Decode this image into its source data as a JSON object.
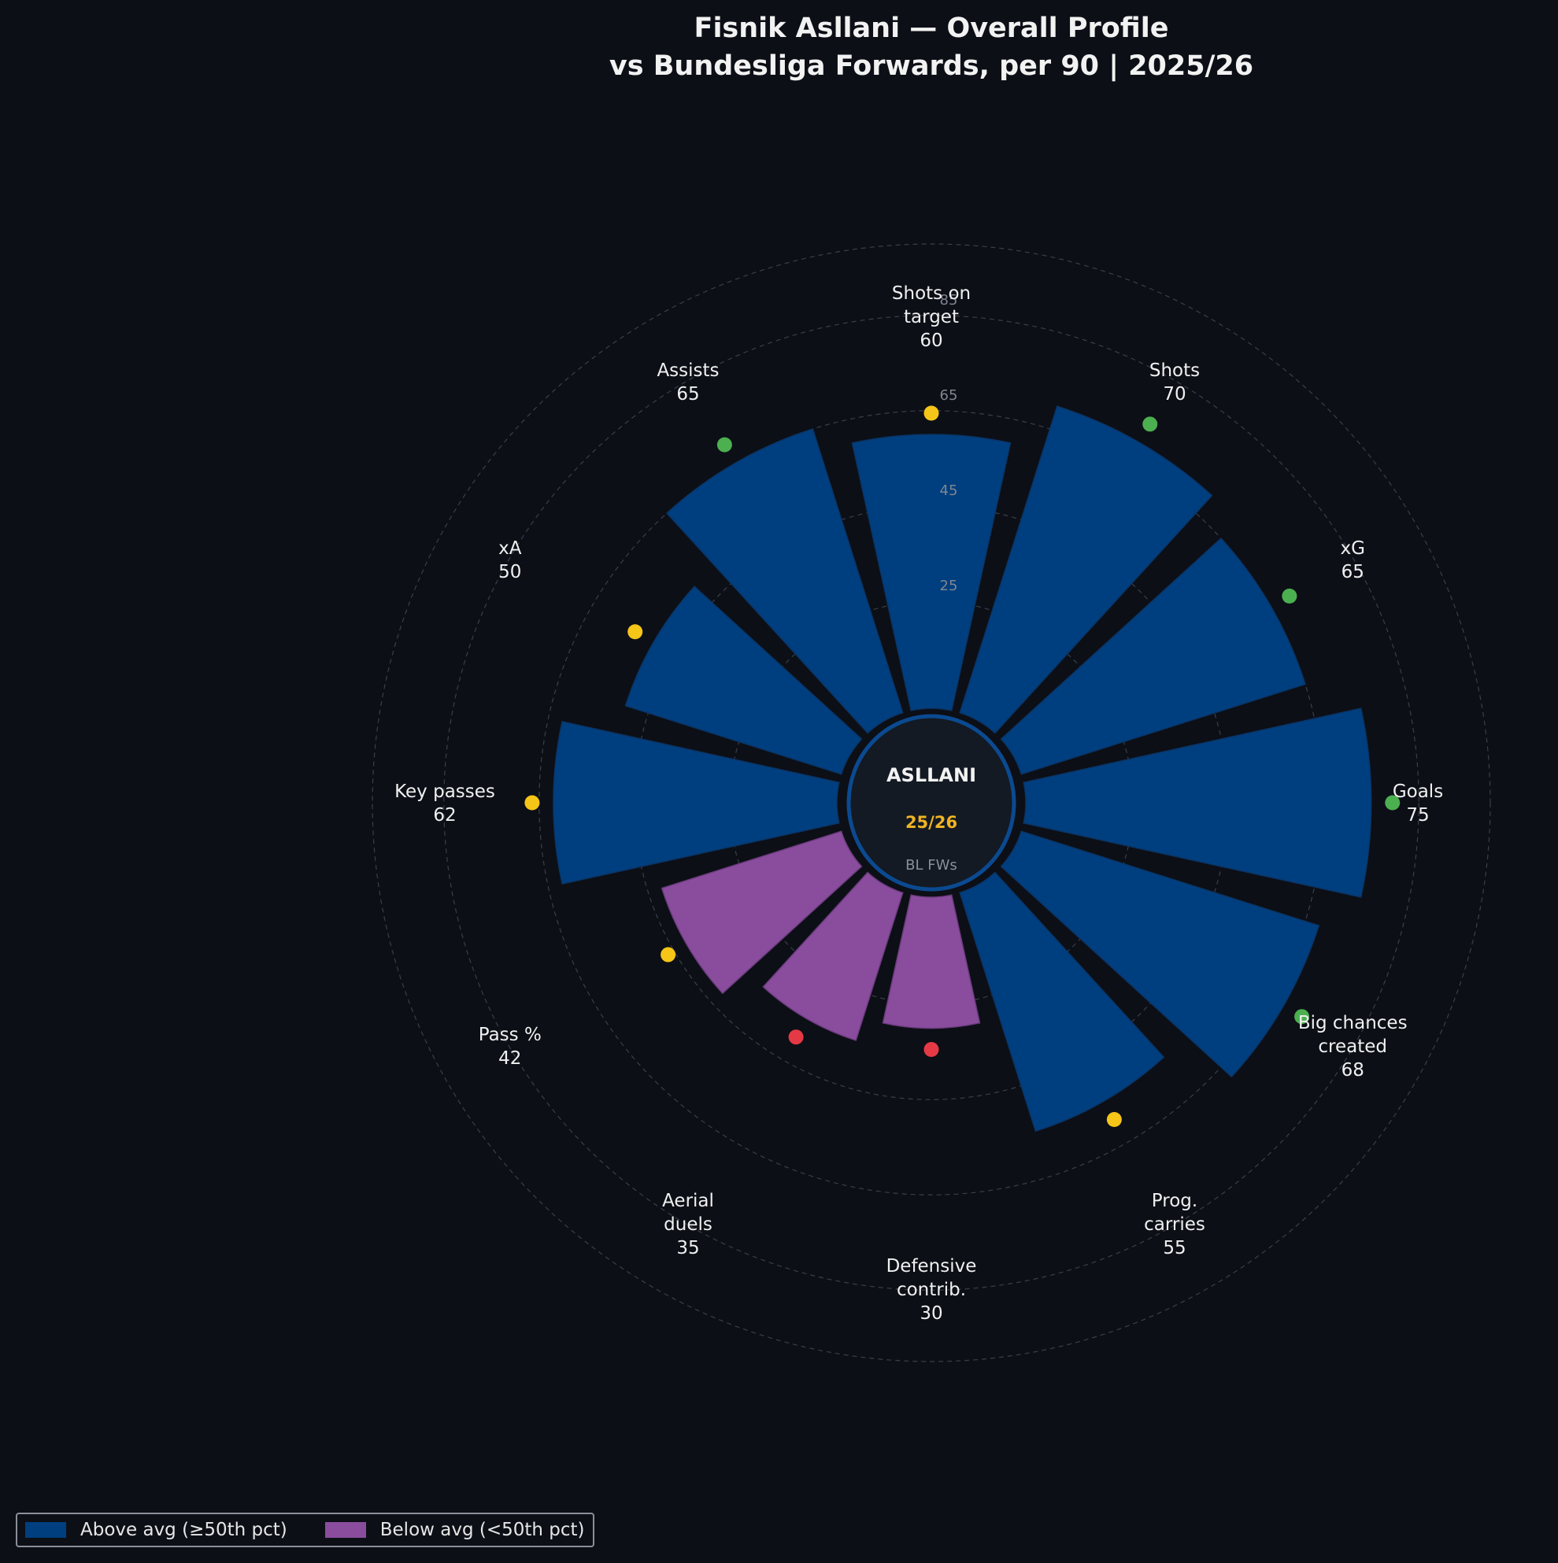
{
  "chart_data": {
    "type": "polar-bar",
    "title": "Fisnik Asllani — Overall Profile",
    "subtitle": "vs Bundesliga Forwards, per 90 | 2025/26",
    "categories": [
      "Shots on\ntarget",
      "Shots",
      "xG",
      "Goals",
      "Big chances\ncreated",
      "Prog.\ncarries",
      "Defensive\ncontrib.",
      "Aerial\nduels",
      "Pass %",
      "Key passes",
      "xA",
      "Assists"
    ],
    "values": [
      60,
      70,
      65,
      75,
      68,
      55,
      30,
      35,
      42,
      62,
      50,
      65
    ],
    "radial_ticks": [
      25,
      45,
      65,
      85
    ],
    "radial_range": [
      0,
      100
    ],
    "center": {
      "name": "ASLLANI",
      "season": "25/26",
      "group": "BL FWs"
    },
    "legend": {
      "placement": "bottom-left",
      "above": "Above avg (≥50th pct)",
      "below": "Below avg (<50th pct)"
    },
    "colors": {
      "background": "#0c0f16",
      "above": "#003f7f",
      "below": "#8a4d9e",
      "center_fill": "#131a23",
      "center_stroke": "#0b4a91",
      "dot_high": "#4caf50",
      "dot_mid": "#f5c518",
      "dot_low": "#e53945",
      "grid": "#3a3f48"
    }
  }
}
